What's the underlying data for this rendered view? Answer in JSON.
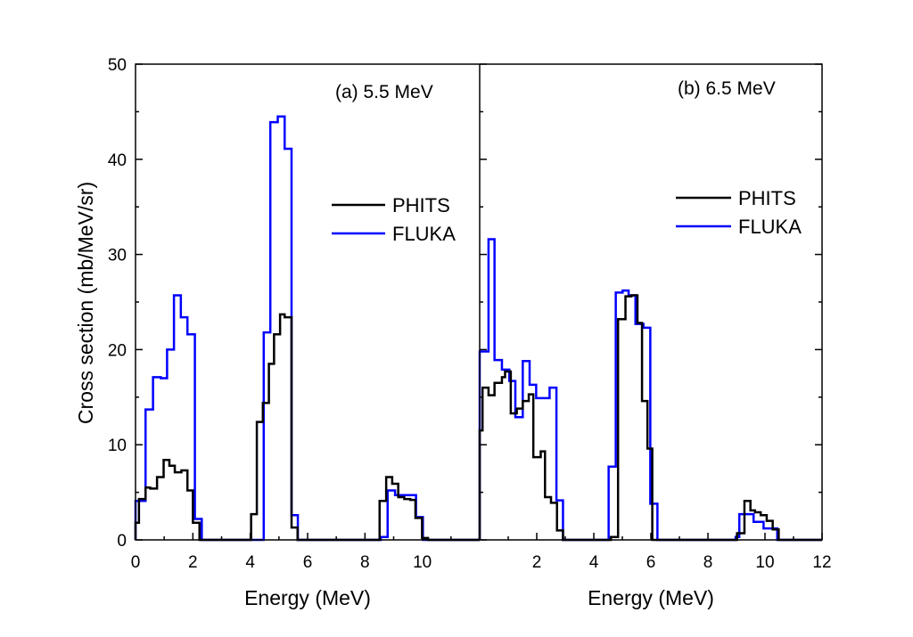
{
  "chart_data": [
    {
      "type": "line",
      "step": true,
      "annotation": "(a) 5.5 MeV",
      "xlabel": "Energy (MeV)",
      "ylabel": "Cross section (mb/MeV/sr)",
      "xlim": [
        0,
        12
      ],
      "ylim": [
        0,
        50
      ],
      "x_tick_labels": [
        "0",
        "2",
        "4",
        "6",
        "8",
        "10"
      ],
      "y_tick_labels": [
        "0",
        "10",
        "20",
        "30",
        "40",
        "50"
      ],
      "legend_placement": "right",
      "grid": false,
      "series": [
        {
          "name": "PHITS",
          "color": "#000000",
          "edges": [
            0,
            0.12,
            0.35,
            0.51,
            0.75,
            0.98,
            1.18,
            1.37,
            1.6,
            1.81,
            2.0,
            2.23,
            4.03,
            4.23,
            4.44,
            4.65,
            4.83,
            5.04,
            5.2,
            5.44,
            5.65,
            8.51,
            8.74,
            8.95,
            9.16,
            9.37,
            9.58,
            9.76,
            9.99,
            10.2
          ],
          "values": [
            1.8,
            4.3,
            5.5,
            5.4,
            6.6,
            8.4,
            7.8,
            7.1,
            7.3,
            5.2,
            1.8,
            0,
            2.7,
            12.4,
            14.4,
            18.5,
            21.6,
            23.7,
            23.4,
            1.3,
            0,
            4.1,
            6.6,
            5.9,
            4.5,
            4.3,
            4.2,
            2.3,
            0.2
          ]
        },
        {
          "name": "FLUKA",
          "color": "#0000ff",
          "edges": [
            0,
            0.35,
            0.61,
            0.88,
            1.1,
            1.34,
            1.58,
            1.81,
            2.07,
            2.31,
            4.47,
            4.7,
            4.96,
            5.2,
            5.44,
            5.66,
            8.55,
            8.79,
            9.05,
            9.31,
            9.78,
            10.02
          ],
          "values": [
            4.1,
            13.7,
            17.1,
            17.0,
            20.0,
            25.7,
            23.4,
            21.6,
            2.2,
            0,
            21.8,
            43.9,
            44.5,
            41.1,
            2.6,
            0,
            0.3,
            5.2,
            4.7,
            4.7,
            2.4
          ]
        }
      ]
    },
    {
      "type": "line",
      "step": true,
      "annotation": "(b) 6.5 MeV",
      "xlabel": "Energy (MeV)",
      "xlim": [
        0,
        12
      ],
      "ylim": [
        0,
        50
      ],
      "x_tick_labels": [
        "2",
        "4",
        "6",
        "8",
        "10",
        "12"
      ],
      "legend_placement": "right",
      "grid": false,
      "series": [
        {
          "name": "PHITS",
          "color": "#000000",
          "edges": [
            0,
            0.1,
            0.31,
            0.52,
            0.78,
            0.89,
            1.09,
            1.3,
            1.51,
            1.72,
            1.88,
            2.14,
            2.29,
            2.5,
            2.71,
            2.92,
            4.6,
            4.85,
            5.11,
            5.32,
            5.53,
            5.69,
            5.88,
            6.05,
            9.02,
            9.28,
            9.49,
            9.65,
            9.85,
            10.06,
            10.27,
            10.48
          ],
          "values": [
            11.5,
            16.0,
            15.2,
            16.5,
            17.1,
            17.7,
            13.3,
            13.8,
            14.6,
            15.3,
            8.7,
            9.3,
            4.5,
            3.9,
            1.0,
            0,
            0.3,
            23.2,
            25.6,
            25.7,
            22.8,
            14.6,
            9.6,
            0,
            0.7,
            4.1,
            3.1,
            2.9,
            2.6,
            2.0,
            1.1
          ]
        },
        {
          "name": "FLUKA",
          "color": "#0000ff",
          "edges": [
            0,
            0.31,
            0.52,
            0.78,
            1.04,
            1.25,
            1.51,
            1.75,
            1.98,
            2.45,
            2.69,
            2.92,
            4.52,
            4.77,
            5.01,
            5.22,
            5.46,
            5.74,
            5.98,
            6.23,
            8.97,
            9.1,
            9.6,
            9.95,
            10.43
          ],
          "values": [
            19.8,
            31.6,
            18.9,
            17.9,
            16.7,
            12.9,
            18.8,
            16.3,
            14.9,
            16.0,
            4.15,
            0,
            7.7,
            26.0,
            26.2,
            25.7,
            22.7,
            22.3,
            3.8,
            0,
            0.3,
            2.7,
            1.9,
            1.2
          ]
        }
      ]
    }
  ]
}
